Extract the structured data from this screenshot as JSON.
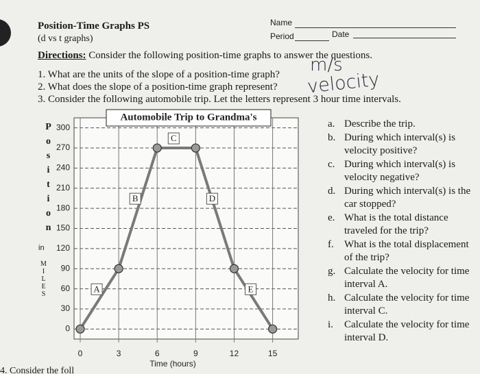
{
  "header": {
    "title": "Position-Time Graphs PS",
    "subtitle": "(d vs t graphs)",
    "name_label": "Name",
    "period_label": "Period",
    "date_label": "Date"
  },
  "directions": {
    "label": "Directions:",
    "text": "Consider the following position-time graphs to answer the questions."
  },
  "questions": [
    "1. What are the units of the slope of a position-time graph?",
    "2. What does the slope of a position-time graph represent?",
    "3. Consider the following automobile trip.  Let the letters represent 3 hour time intervals."
  ],
  "handwriting": {
    "answer_1": "m/s",
    "answer_2": "velocity"
  },
  "chart_data": {
    "type": "line",
    "title": "Automobile Trip to Grandma's",
    "x_label": "Time (hours)",
    "y_label": "Position",
    "y_unit_prefix": "in",
    "y_unit": "MILES",
    "x": [
      0,
      3,
      6,
      9,
      12,
      15
    ],
    "series": [
      {
        "color": "#7a7a7a",
        "values": [
          0,
          90,
          270,
          270,
          90,
          0
        ]
      }
    ],
    "segment_labels": [
      "A",
      "B",
      "C",
      "D",
      "E"
    ],
    "xlim": [
      0,
      17
    ],
    "ylim": [
      -15,
      315
    ],
    "xticks": [
      0,
      3,
      6,
      9,
      12,
      15
    ],
    "yticks": [
      0,
      30,
      60,
      90,
      120,
      150,
      180,
      210,
      240,
      270,
      300
    ],
    "grid": true
  },
  "side_questions": [
    {
      "marker": "a.",
      "text": "Describe the trip."
    },
    {
      "marker": "b.",
      "text": "During which interval(s) is velocity positive?"
    },
    {
      "marker": "c.",
      "text": "During which interval(s) is velocity negative?"
    },
    {
      "marker": "d.",
      "text": "During which interval(s) is the car stopped?"
    },
    {
      "marker": "e.",
      "text": "What is the total distance traveled for the trip?"
    },
    {
      "marker": "f.",
      "text": "What is the total displacement of the trip?"
    },
    {
      "marker": "g.",
      "text": "Calculate the velocity for time interval A."
    },
    {
      "marker": "h.",
      "text": "Calculate the velocity for time interval C."
    },
    {
      "marker": "i.",
      "text": "Calculate the velocity for time interval D."
    }
  ],
  "footer": "4. Consider the foll"
}
